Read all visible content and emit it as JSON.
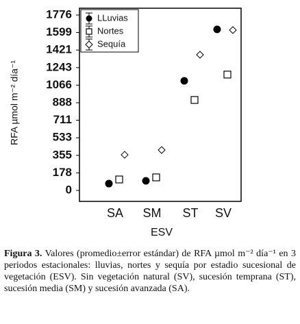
{
  "chart_data": {
    "type": "scatter",
    "x_label": "ESV",
    "y_label": "RFA µmol m⁻² día⁻¹",
    "categories": [
      "SA",
      "SM",
      "ST",
      "SV"
    ],
    "series": [
      {
        "name": "LLuvias",
        "marker": "circle",
        "color": "#000000",
        "values": [
          69,
          97,
          1110,
          1631
        ]
      },
      {
        "name": "Nortes",
        "marker": "square",
        "color": "#000000",
        "values": [
          111,
          132,
          916,
          1173
        ]
      },
      {
        "name": "Sequía",
        "marker": "diamond",
        "color": "#000000",
        "values": [
          361,
          409,
          1374,
          1624
        ]
      }
    ],
    "ylim": [
      -111,
      1845
    ],
    "yticks": [
      0,
      178,
      355,
      533,
      711,
      888,
      1066,
      1243,
      1421,
      1599,
      1776
    ],
    "legend": "upper-left"
  },
  "caption": {
    "label": "Figura 3.",
    "text": "Valores (promedio±error estándar) de RFA µmol m⁻² día⁻¹ en 3 periodos estacionales: lluvias, nortes y sequía por estadio sucesional de vegetación (ESV). Sin vegetación natural (SV), sucesión temprana (ST), sucesión media (SM) y sucesión avanzada (SA)."
  }
}
